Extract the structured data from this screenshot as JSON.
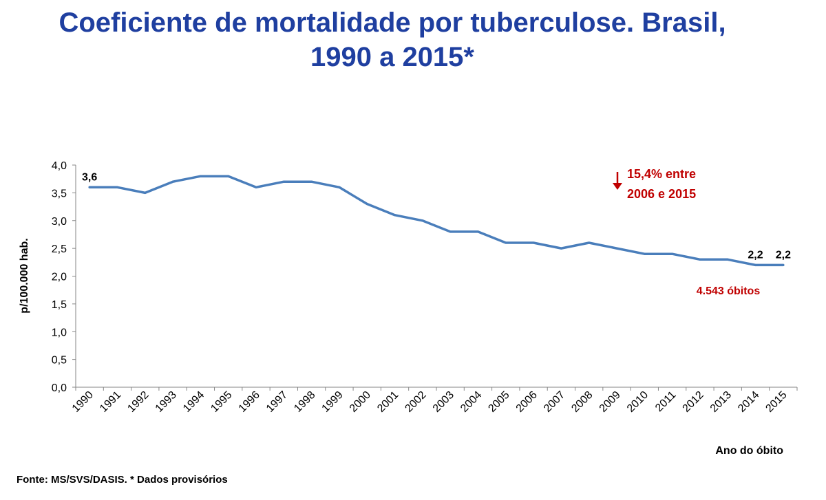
{
  "title": {
    "line1": "Coeficiente de mortalidade por tuberculose. Brasil,",
    "line2": "1990 a 2015*"
  },
  "source": "Fonte: MS/SVS/DASIS. * Dados provisórios",
  "colors": {
    "title": "#1f3fa0",
    "line": "#4a7ebb",
    "annotation": "#c00000",
    "axis": "#868686"
  },
  "chart_data": {
    "type": "line",
    "title": "Coeficiente de mortalidade por tuberculose. Brasil, 1990 a 2015*",
    "xlabel": "Ano do óbito",
    "ylabel": "p/100.000 hab.",
    "ylim": [
      0,
      4
    ],
    "yticks": [
      "0,0",
      "0,5",
      "1,0",
      "1,5",
      "2,0",
      "2,5",
      "3,0",
      "3,5",
      "4,0"
    ],
    "grid": false,
    "categories": [
      "1990",
      "1991",
      "1992",
      "1993",
      "1994",
      "1995",
      "1996",
      "1997",
      "1998",
      "1999",
      "2000",
      "2001",
      "2002",
      "2003",
      "2004",
      "2005",
      "2006",
      "2007",
      "2008",
      "2009",
      "2010",
      "2011",
      "2012",
      "2013",
      "2014",
      "2015"
    ],
    "series": [
      {
        "name": "Coeficiente de mortalidade",
        "values": [
          3.6,
          3.6,
          3.5,
          3.7,
          3.8,
          3.8,
          3.6,
          3.7,
          3.7,
          3.6,
          3.3,
          3.1,
          3.0,
          2.8,
          2.8,
          2.6,
          2.6,
          2.5,
          2.6,
          2.5,
          2.4,
          2.4,
          2.3,
          2.3,
          2.2,
          2.2
        ]
      }
    ],
    "data_labels": [
      {
        "category": "1990",
        "text": "3,6"
      },
      {
        "category": "2014",
        "text": "2,2"
      },
      {
        "category": "2015",
        "text": "2,2"
      }
    ],
    "annotations": {
      "decrease_line1": "15,4% entre",
      "decrease_line2": "2006 e 2015",
      "deaths": "4.543 óbitos"
    }
  }
}
